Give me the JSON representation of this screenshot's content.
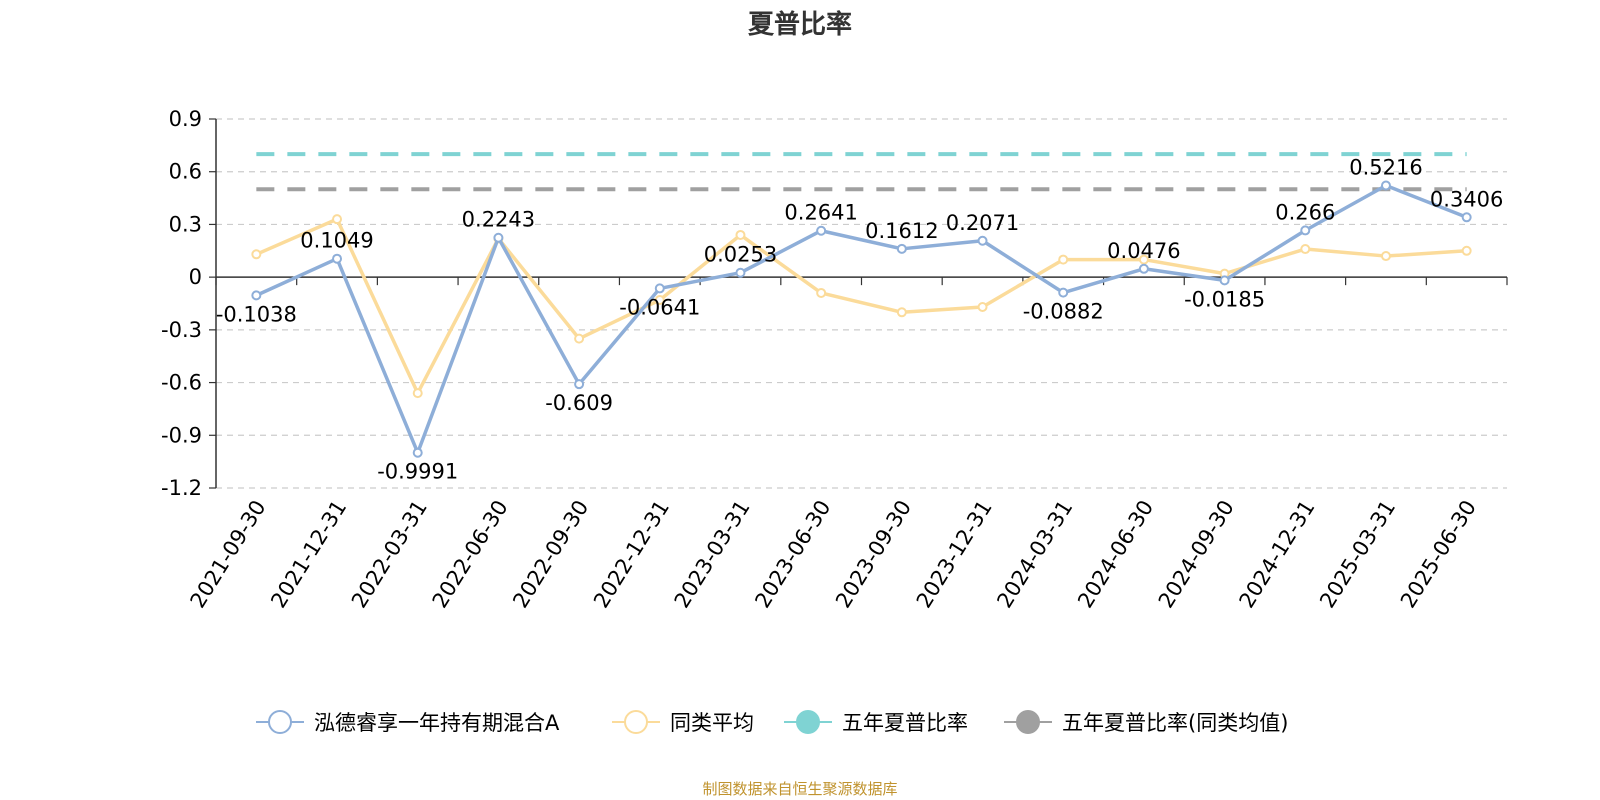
{
  "title": "夏普比率",
  "source_text": "制图数据来自恒生聚源数据库",
  "chart_data": {
    "type": "line",
    "title": "夏普比率",
    "categories": [
      "2021-09-30",
      "2021-12-31",
      "2022-03-31",
      "2022-06-30",
      "2022-09-30",
      "2022-12-31",
      "2023-03-31",
      "2023-06-30",
      "2023-09-30",
      "2023-12-31",
      "2024-03-31",
      "2024-06-30",
      "2024-09-30",
      "2024-12-31",
      "2025-03-31",
      "2025-06-30"
    ],
    "ylim": [
      -1.2,
      0.9
    ],
    "yticks": [
      0.9,
      0.6,
      0.3,
      0,
      -0.3,
      -0.6,
      -0.9,
      -1.2
    ],
    "ytick_labels": [
      "0.9",
      "0.6",
      "0.3",
      "0",
      "-0.3",
      "-0.6",
      "-0.9",
      "-1.2"
    ],
    "grid": true,
    "legend_position": "bottom",
    "series": [
      {
        "name": "泓德睿享一年持有期混合A",
        "color": "#8eaed8",
        "values": [
          -0.1038,
          0.1049,
          -0.9991,
          0.2243,
          -0.609,
          -0.0641,
          0.0253,
          0.2641,
          0.1612,
          0.2071,
          -0.0882,
          0.0476,
          -0.0185,
          0.266,
          0.5216,
          0.3406
        ],
        "labels": [
          "-0.1038",
          "0.1049",
          "-0.9991",
          "0.2243",
          "-0.609",
          "-0.0641",
          "0.0253",
          "0.2641",
          "0.1612",
          "0.2071",
          "-0.0882",
          "0.0476",
          "-0.0185",
          "0.266",
          "0.5216",
          "0.3406"
        ]
      },
      {
        "name": "同类平均",
        "color": "#fbdb9a",
        "values": [
          0.13,
          0.33,
          -0.66,
          0.22,
          -0.35,
          -0.13,
          0.24,
          -0.09,
          -0.2,
          -0.17,
          0.1,
          0.1,
          0.02,
          0.16,
          0.12,
          0.15
        ]
      }
    ],
    "reference_lines": [
      {
        "name": "五年夏普比率",
        "color": "#7fd3d3",
        "value": 0.7
      },
      {
        "name": "五年夏普比率(同类均值)",
        "color": "#a0a0a0",
        "value": 0.5
      }
    ]
  }
}
